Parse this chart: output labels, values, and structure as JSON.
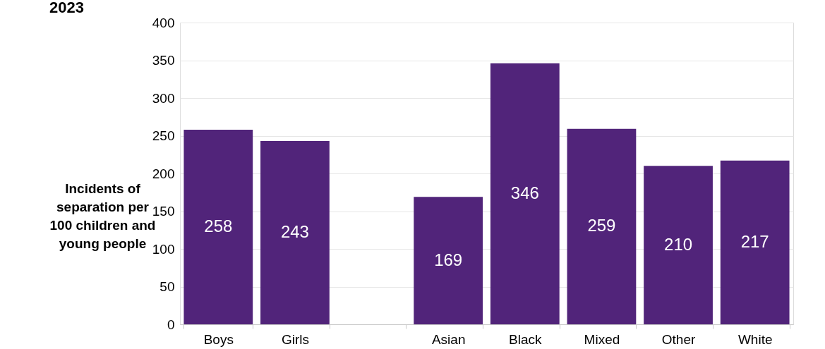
{
  "chart_data": {
    "type": "bar",
    "title": "2023",
    "ylabel": "Incidents of separation per 100 children and young people",
    "categories": [
      "Boys",
      "Girls",
      null,
      "Asian",
      "Black",
      "Mixed",
      "Other",
      "White"
    ],
    "values": [
      258,
      243,
      null,
      169,
      346,
      259,
      210,
      217
    ],
    "color": "#51247a",
    "ylim": [
      0,
      400
    ],
    "yticks": [
      0,
      50,
      100,
      150,
      200,
      250,
      300,
      350,
      400
    ],
    "grid": "y",
    "data_labels": true
  }
}
